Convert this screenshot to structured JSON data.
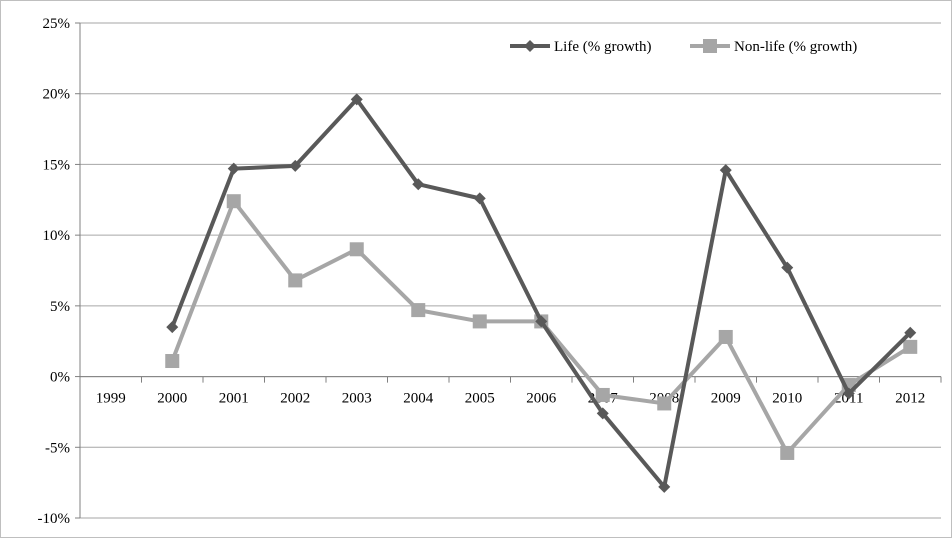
{
  "chart_data": {
    "type": "line",
    "title": "",
    "xlabel": "",
    "ylabel": "",
    "categories": [
      "1999",
      "2000",
      "2001",
      "2002",
      "2003",
      "2004",
      "2005",
      "2006",
      "2007",
      "2008",
      "2009",
      "2010",
      "2011",
      "2012"
    ],
    "y_ticks": [
      "-10%",
      "-5%",
      "0%",
      "5%",
      "10%",
      "15%",
      "20%",
      "25%"
    ],
    "y_tick_values": [
      -10,
      -5,
      0,
      5,
      10,
      15,
      20,
      25
    ],
    "ylim": [
      -10,
      25
    ],
    "grid": true,
    "legend_position": "top-right",
    "series": [
      {
        "name": "Life (% growth)",
        "color": "#595959",
        "marker": "diamond",
        "values": [
          null,
          3.5,
          14.7,
          14.9,
          19.6,
          13.6,
          12.6,
          3.9,
          -2.6,
          -7.8,
          14.6,
          7.7,
          -1.2,
          3.1
        ]
      },
      {
        "name": "Non-life (% growth)",
        "color": "#a6a6a6",
        "marker": "square",
        "values": [
          null,
          1.1,
          12.4,
          6.8,
          9.0,
          4.7,
          3.9,
          3.9,
          -1.3,
          -1.9,
          2.8,
          -5.4,
          -0.6,
          2.1
        ]
      }
    ]
  }
}
